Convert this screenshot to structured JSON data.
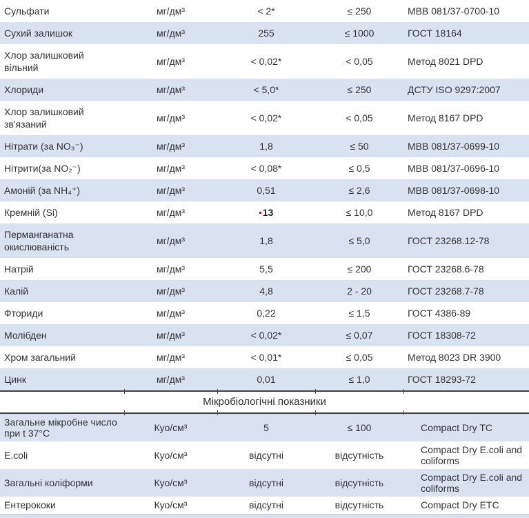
{
  "colors": {
    "alt_row_bg": "#d9e2f1",
    "section_border": "#3f3f3f",
    "exceedance_marker": "#e00000",
    "text": "#333333"
  },
  "section2": {
    "title": "Мікробіологічні показники"
  },
  "chemical_rows": [
    {
      "parameter": "Сульфати",
      "unit": "мг/дм³",
      "value": "< 2*",
      "norm": "≤ 250",
      "method": "МВВ 081/37-0700-10"
    },
    {
      "parameter": "Сухий залишок",
      "unit": "мг/дм³",
      "value": "255",
      "norm": "≤ 1000",
      "method": "ГОСТ  18164"
    },
    {
      "parameter": "Хлор залишковий вільний",
      "unit": "мг/дм³",
      "value": "< 0,02*",
      "norm": "< 0,05",
      "method": "Метод 8021 DPD"
    },
    {
      "parameter": "Хлориди",
      "unit": "мг/дм³",
      "value": "< 5,0*",
      "norm": "≤ 250",
      "method": "ДСТУ ISO 9297:2007"
    },
    {
      "parameter": "Хлор залишковий зв'язаний",
      "unit": "мг/дм³",
      "value": "< 0,02*",
      "norm": "< 0,05",
      "method": "Метод 8167 DPD"
    },
    {
      "parameter": "Нітрати (за NO₃⁻)",
      "unit": "мг/дм³",
      "value": "1,8",
      "norm": "≤ 50",
      "method": "МВВ 081/37-0699-10"
    },
    {
      "parameter": "Нітрити(за NO₂⁻)",
      "unit": "мг/дм³",
      "value": "< 0,08*",
      "norm": "≤ 0,5",
      "method": "МВВ 081/37-0696-10"
    },
    {
      "parameter": "Амоній (за NH₄⁺)",
      "unit": "мг/дм³",
      "value": "0,51",
      "norm": "≤ 2,6",
      "method": "МВВ 081/37-0698-10"
    },
    {
      "parameter": "Кремній (Si)",
      "unit": "мг/дм³",
      "value": "13",
      "marked": true,
      "norm": "≤ 10,0",
      "method": "Метод 8167 DPD"
    },
    {
      "parameter": "Перманганатна окислюваність",
      "unit": "мг/дм³",
      "value": "1,8",
      "norm": "≤ 5,0",
      "method": "ГОСТ 23268.12-78"
    },
    {
      "parameter": "Натрій",
      "unit": "мг/дм³",
      "value": "5,5",
      "norm": "≤ 200",
      "method": "ГОСТ 23268.6-78"
    },
    {
      "parameter": "Калій",
      "unit": "мг/дм³",
      "value": "4,8",
      "norm": "2 - 20",
      "method": "ГОСТ 23268.7-78"
    },
    {
      "parameter": "Фториди",
      "unit": "мг/дм³",
      "value": "0,22",
      "norm": "≤ 1,5",
      "method": "ГОСТ 4386-89"
    },
    {
      "parameter": "Молібден",
      "unit": "мг/дм³",
      "value": "< 0,02*",
      "norm": "≤ 0,07",
      "method": "ГОСТ 18308-72"
    },
    {
      "parameter": "Хром загальний",
      "unit": "мг/дм³",
      "value": "< 0,01*",
      "norm": "≤ 0,05",
      "method": "Метод 8023 DR 3900"
    },
    {
      "parameter": "Цинк",
      "unit": "мг/дм³",
      "value": "0,01",
      "norm": "≤ 1,0",
      "method": "ГОСТ 18293-72"
    }
  ],
  "micro_rows": [
    {
      "parameter": "Загальне мікробне число при t 37°С",
      "unit": "Куо/см³",
      "value": "5",
      "norm": "≤ 100",
      "method": "Compact Dry TC"
    },
    {
      "parameter": "E.coli",
      "unit": "Куо/см³",
      "value": "відсутні",
      "norm": "відсутність",
      "method": "Compact Dry E.coli and coliforms"
    },
    {
      "parameter": "Загальні коліформи",
      "unit": "Куо/см³",
      "value": "відсутні",
      "norm": "відсутність",
      "method": "Compact Dry E.coli and coliforms"
    },
    {
      "parameter": "Ентерококи",
      "unit": "Куо/см³",
      "value": "відсутні",
      "norm": "відсутність",
      "method": "Compact Dry ETC"
    }
  ]
}
